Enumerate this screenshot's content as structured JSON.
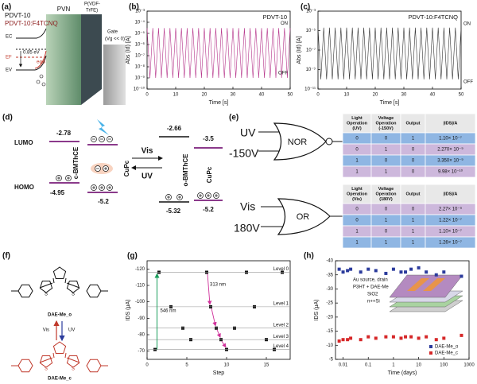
{
  "panel_labels": [
    "(a)",
    "(b)",
    "(c)",
    "(d)",
    "(e)",
    "(f)",
    "(g)",
    "(h)"
  ],
  "panel_a": {
    "material_1": "PDVT-10",
    "material_2": "PDVT-10:F4TCNQ",
    "pvn": "PVN",
    "ferro": [
      "P(VDF-",
      "TrFE)"
    ],
    "gate": [
      "Gate",
      "(Vg << 0)"
    ],
    "ec": "EC",
    "ef": "EF",
    "ev": "EV",
    "gap": "0.85 eV",
    "phi": "eφB"
  },
  "chart_data": [
    {
      "type": "line",
      "title": "PDVT-10",
      "xlabel": "Time [s]",
      "ylabel": "Abs (Id) [A]",
      "x": [
        0,
        1,
        2,
        3,
        4,
        5,
        6,
        7,
        8,
        9,
        10,
        11,
        12,
        13,
        14,
        15,
        16,
        17,
        18,
        19,
        20,
        21,
        22,
        23,
        24,
        25,
        26,
        27,
        28,
        29,
        30,
        31,
        32,
        33,
        34,
        35,
        36,
        37,
        38,
        39,
        40,
        41,
        42,
        43,
        44,
        45,
        46,
        47,
        48,
        49,
        50
      ],
      "series": [
        {
          "color": "#b5338a",
          "values": [
            3e-05,
            1e-09,
            3e-05,
            1e-09,
            3e-05,
            1e-09,
            3e-05,
            1e-09,
            3e-05,
            1e-09,
            3e-05,
            1e-09,
            3e-05,
            1e-09,
            3e-05,
            1e-09,
            3e-05,
            1e-09,
            3e-05,
            1e-09,
            3e-05,
            1e-09,
            3e-05,
            1e-09,
            3e-05,
            1e-09,
            3e-05,
            1e-09,
            3e-05,
            1e-09,
            3e-05,
            1e-09,
            3e-05,
            1e-09,
            3e-05,
            1e-09,
            3e-05,
            1e-09,
            3e-05,
            1e-09,
            3e-05,
            1e-09,
            3e-05,
            1e-09,
            3e-05,
            1e-09,
            3e-05,
            1e-09,
            3e-05,
            1e-09,
            3e-05
          ]
        }
      ],
      "xlim": [
        0,
        50
      ],
      "xticks": [
        0,
        10,
        20,
        30,
        40,
        50
      ],
      "ylim": [
        1e-10,
        0.001
      ],
      "yscale": "log",
      "yticks": [
        {
          "value": 1e-10,
          "label": "10⁻¹⁰"
        },
        {
          "value": 1e-09,
          "label": "10⁻⁹"
        },
        {
          "value": 1e-08,
          "label": "10⁻⁸"
        },
        {
          "value": 1e-07,
          "label": "10⁻⁷"
        },
        {
          "value": 1e-06,
          "label": "10⁻⁶"
        },
        {
          "value": 1e-05,
          "label": "10⁻⁵"
        },
        {
          "value": 0.0001,
          "label": "10⁻⁴"
        },
        {
          "value": 0.001,
          "label": "10⁻³"
        }
      ],
      "annotations": [
        "ON",
        "OFF"
      ]
    },
    {
      "type": "line",
      "title": "PDVT-10:F4TCNQ",
      "xlabel": "Time [s]",
      "ylabel": "Abs (Id) [A]",
      "x": [
        0,
        1,
        2,
        3,
        4,
        5,
        6,
        7,
        8,
        9,
        10,
        11,
        12,
        13,
        14,
        15,
        16,
        17,
        18,
        19,
        20,
        21,
        22,
        23,
        24,
        25,
        26,
        27,
        28,
        29,
        30,
        31,
        32,
        33,
        34,
        35,
        36,
        37,
        38,
        39,
        40,
        41,
        42,
        43,
        44,
        45,
        46,
        47,
        48,
        49,
        50
      ],
      "series": [
        {
          "color": "#333333",
          "values": [
            2e-05,
            1e-10,
            2e-05,
            1e-10,
            2e-05,
            1e-10,
            2e-05,
            1e-10,
            2e-05,
            1e-10,
            2e-05,
            1e-10,
            2e-05,
            1e-10,
            2e-05,
            1e-10,
            2e-05,
            1e-10,
            2e-05,
            1e-10,
            2e-05,
            1e-10,
            2e-05,
            1e-10,
            2e-05,
            1e-10,
            2e-05,
            1e-10,
            2e-05,
            1e-10,
            2e-05,
            1e-10,
            2e-05,
            1e-10,
            2e-05,
            1e-10,
            2e-05,
            1e-10,
            2e-05,
            1e-10,
            2e-05,
            1e-10,
            2e-05,
            1e-10,
            2e-05,
            1e-10,
            2e-05,
            1e-10,
            2e-05,
            1e-10,
            2e-05
          ]
        }
      ],
      "xlim": [
        0,
        50
      ],
      "xticks": [
        0,
        10,
        20,
        30,
        40,
        50
      ],
      "ylim": [
        1e-11,
        0.001
      ],
      "yscale": "log",
      "yticks": [
        {
          "value": 1e-11,
          "label": "10⁻¹¹"
        },
        {
          "value": 1e-09,
          "label": "10⁻⁹"
        },
        {
          "value": 1e-07,
          "label": "10⁻⁷"
        },
        {
          "value": 1e-05,
          "label": "10⁻⁵"
        },
        {
          "value": 0.001,
          "label": "10⁻³"
        }
      ],
      "annotations": [
        "ON",
        "OFF"
      ]
    },
    {
      "type": "scatter",
      "xlabel": "Step",
      "ylabel": "IDS (μA)",
      "x": [
        1,
        1.5,
        3,
        4.5,
        5.5,
        7.5,
        8,
        8.7,
        9.3,
        10,
        11,
        12.5,
        13.5,
        15,
        16,
        17
      ],
      "series": [
        {
          "color": "#111111",
          "values": [
            -71,
            -118,
            -97,
            -84,
            -77,
            -118,
            -97,
            -84,
            -77,
            -71,
            -84,
            -118,
            -97,
            -77,
            -71,
            -118
          ]
        }
      ],
      "xlim": [
        0,
        18
      ],
      "xticks": [
        0,
        5,
        10,
        15
      ],
      "ylim": [
        -65,
        -125
      ],
      "yticks": [
        -120,
        -110,
        -100,
        -90,
        -80,
        -70
      ],
      "levels": [
        {
          "label": "Level 0",
          "value": -118
        },
        {
          "label": "Level 1",
          "value": -97
        },
        {
          "label": "Level 2",
          "value": -84
        },
        {
          "label": "Level 3",
          "value": -77
        },
        {
          "label": "Level 4",
          "value": -71
        }
      ],
      "annotations": [
        "546 nm",
        "313 nm"
      ]
    },
    {
      "type": "scatter",
      "xlabel": "Time (days)",
      "ylabel": "IDS (μA)",
      "x": [
        0.007,
        0.01,
        0.015,
        0.02,
        0.05,
        0.1,
        0.2,
        0.5,
        1,
        2,
        3,
        5,
        10,
        20,
        50,
        100,
        500
      ],
      "series": [
        {
          "name": "DAE-Me_o",
          "color": "#2b3b9c",
          "values": [
            -37,
            -36,
            -36.5,
            -37,
            -36,
            -37,
            -36.5,
            -35.5,
            -37,
            -36,
            -36,
            -37,
            -37.5,
            -36,
            -35,
            -36,
            -34.5
          ]
        },
        {
          "name": "DAE-Me_c",
          "color": "#d62728",
          "values": [
            -11.5,
            -12,
            -12,
            -12.5,
            -12,
            -13,
            -12.5,
            -13,
            -13,
            -12.5,
            -13,
            -13,
            -12.5,
            -13,
            -12,
            -12.5,
            -13.5
          ]
        }
      ],
      "xlim": [
        0.005,
        1000
      ],
      "xscale": "log",
      "xticks": [
        0.01,
        0.1,
        1,
        10,
        100,
        1000
      ],
      "ylim": [
        -5,
        -40
      ],
      "yticks": [
        -40,
        -35,
        -30,
        -25,
        -20,
        -15,
        -10,
        -5
      ],
      "legend": "lower right",
      "inset": [
        "Au source, drain",
        "P3HT + DAE-Me",
        "SiO2",
        "n++Si"
      ]
    }
  ],
  "panel_d": {
    "lumo": "LUMO",
    "homo": "HOMO",
    "c_bmthce": "c-BMThCE",
    "o_bmthce": "o-BMThCE",
    "cupc": "CuPc",
    "vis": "Vis",
    "uv": "UV",
    "levels": {
      "c_lumo": "-2.78",
      "c_homo": "-4.95",
      "cupc_homo_left": "-5.2",
      "o_lumo": "-2.66",
      "cupc_lumo_right": "-3.5",
      "o_homo": "-5.32",
      "cupc_homo_right": "-5.2"
    }
  },
  "panel_e": {
    "nor": {
      "inputs": [
        "UV",
        "-150V"
      ],
      "label": "NOR"
    },
    "or": {
      "inputs": [
        "Vis",
        "180V"
      ],
      "label": "OR"
    },
    "tables": [
      {
        "header": [
          [
            "Light",
            "Operation",
            "(UV)"
          ],
          [
            "Voltage",
            "Operation",
            "(-150V)"
          ],
          [
            "Output"
          ],
          [
            "|IDS|/A"
          ]
        ],
        "rows": [
          [
            "0",
            "0",
            "1",
            "1.10× 10⁻⁷"
          ],
          [
            "0",
            "1",
            "0",
            "2.270× 10⁻⁹"
          ],
          [
            "1",
            "0",
            "0",
            "3.350× 10⁻⁹"
          ],
          [
            "1",
            "1",
            "0",
            "9.98× 10⁻¹⁰"
          ]
        ],
        "row_colors": [
          "#8fb6e3",
          "#cdb8dc",
          "#8fb6e3",
          "#cdb8dc"
        ]
      },
      {
        "header": [
          [
            "Light",
            "Operation",
            "(Vis)"
          ],
          [
            "Voltage",
            "Operation",
            "(180V)"
          ],
          [
            "Output"
          ],
          [
            "|IDS|/A"
          ]
        ],
        "rows": [
          [
            "0",
            "0",
            "0",
            "2.27× 10⁻⁹"
          ],
          [
            "0",
            "1",
            "1",
            "1.22× 10⁻⁷"
          ],
          [
            "1",
            "0",
            "1",
            "1.10× 10⁻⁷"
          ],
          [
            "1",
            "1",
            "1",
            "1.26× 10⁻⁷"
          ]
        ],
        "row_colors": [
          "#cdb8dc",
          "#8fb6e3",
          "#cdb8dc",
          "#8fb6e3"
        ]
      }
    ]
  },
  "panel_f": {
    "top": "DAE-Me_o",
    "bottom": "DAE-Me_c",
    "vis": "Vis",
    "uv": "UV",
    "atom": "S"
  }
}
